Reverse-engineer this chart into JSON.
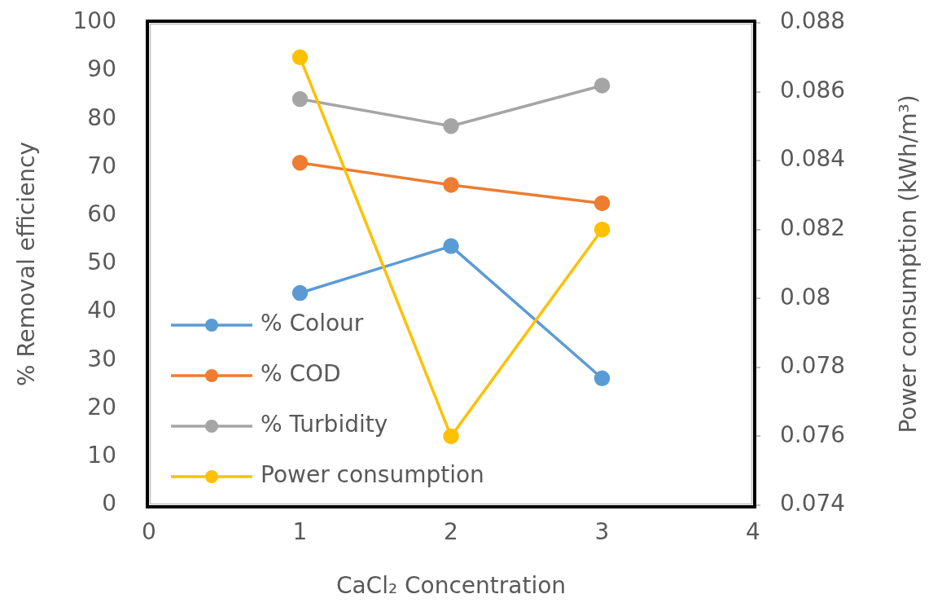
{
  "chart_data": {
    "type": "line",
    "xlabel": "CaCl₂ Concentration",
    "ylabel": "% Removal efficiency",
    "y2label": "Power consumption (kWh/m³)",
    "x": [
      1,
      2,
      3
    ],
    "series": [
      {
        "name": "% Colour",
        "color": "#5b9bd5",
        "values": [
          44,
          53.7,
          26.3
        ]
      },
      {
        "name": "% COD",
        "color": "#ed7d31",
        "values": [
          71,
          66.4,
          62.6
        ]
      },
      {
        "name": "% Turbidity",
        "color": "#a5a5a5",
        "values": [
          84.2,
          78.6,
          87
        ]
      },
      {
        "name": "Power consumption",
        "color": "#ffc000",
        "values": [
          0.087,
          0.076,
          0.082
        ],
        "axis": "y2"
      }
    ],
    "xlim": [
      0,
      4
    ],
    "xticks": [
      0,
      1,
      2,
      3,
      4
    ],
    "ylim": [
      0,
      100
    ],
    "yticks": [
      0,
      10,
      20,
      30,
      40,
      50,
      60,
      70,
      80,
      90,
      100
    ],
    "y2lim": [
      0.074,
      0.088
    ],
    "y2ticks": [
      0.074,
      0.076,
      0.078,
      0.08,
      0.082,
      0.084,
      0.086,
      0.088
    ],
    "legend": "bottom left",
    "marker": "circle"
  }
}
